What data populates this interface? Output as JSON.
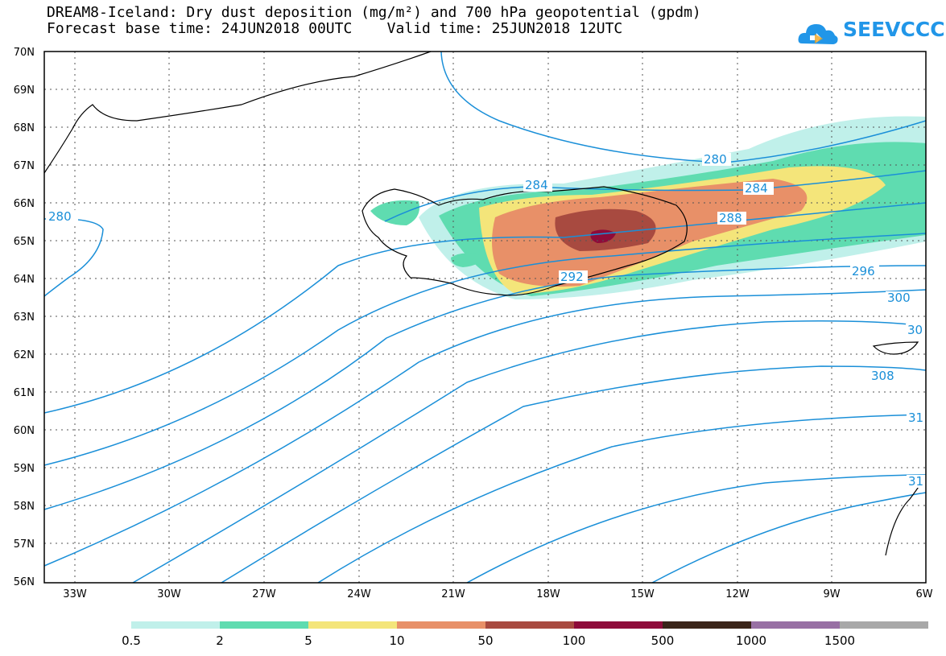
{
  "title": {
    "line1": "DREAM8-Iceland: Dry dust deposition (mg/m²) and 700 hPa geopotential (gpdm)",
    "line2": "Forecast base time: 24JUN2018 00UTC    Valid time: 25JUN2018 12UTC"
  },
  "logo": {
    "text": "SEEVCCC"
  },
  "axes": {
    "lat_labels": [
      "70N",
      "69N",
      "68N",
      "67N",
      "66N",
      "65N",
      "64N",
      "63N",
      "62N",
      "61N",
      "60N",
      "59N",
      "58N",
      "57N",
      "56N"
    ],
    "lon_labels": [
      "33W",
      "30W",
      "27W",
      "24W",
      "21W",
      "18W",
      "15W",
      "12W",
      "9W",
      "6W"
    ]
  },
  "contour_labels": [
    "280",
    "284",
    "284",
    "280",
    "288",
    "292",
    "296",
    "300",
    "30",
    "308",
    "31",
    "31"
  ],
  "legend": {
    "labels": [
      "0.5",
      "2",
      "5",
      "10",
      "50",
      "100",
      "500",
      "1000",
      "1500"
    ],
    "colors": [
      "#c0f0ea",
      "#5fdcb0",
      "#f4e57a",
      "#e89068",
      "#a84a40",
      "#8e0b3a",
      "#3a2418",
      "#9870a4",
      "#a8a8a8"
    ]
  },
  "colors": {
    "contour": "#1a8fd8",
    "coast": "#000000"
  }
}
